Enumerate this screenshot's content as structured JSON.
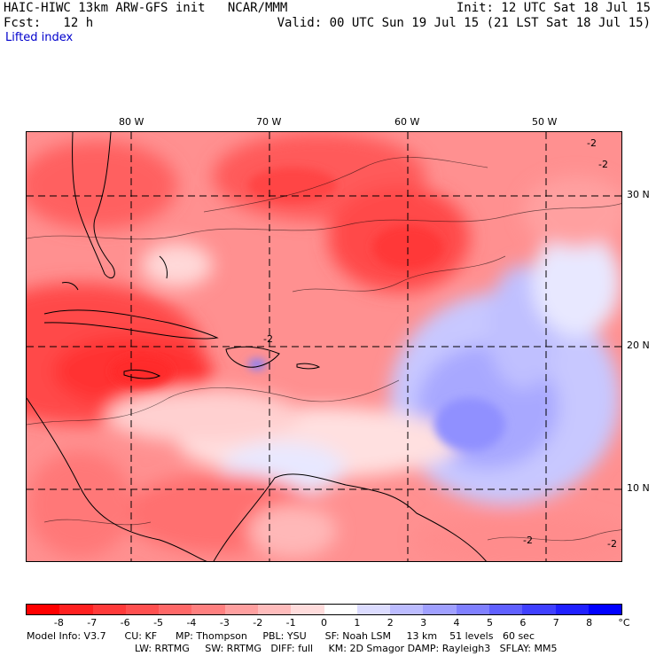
{
  "header": {
    "title_left": "HAIC-HIWC 13km ARW-GFS init   NCAR/MMM",
    "forecast_line": "Fcst:   12 h",
    "field_name": "Lifted index",
    "init_line": "Init: 12 UTC Sat 18 Jul 15",
    "valid_line": "Valid: 00 UTC Sun 19 Jul 15 (21 LST Sat 18 Jul 15)"
  },
  "map": {
    "longitude_labels": [
      "80 W",
      "70 W",
      "60 W",
      "50 W"
    ],
    "latitude_labels": [
      "30 N",
      "20 N",
      "10 N"
    ],
    "contour_labels": [
      "-2",
      "-2",
      "-2",
      "-2",
      "-2"
    ]
  },
  "colorbar": {
    "tick_labels": [
      "-8",
      "-7",
      "-6",
      "-5",
      "-4",
      "-3",
      "-2",
      "-1",
      "0",
      "1",
      "2",
      "3",
      "4",
      "5",
      "6",
      "7",
      "8"
    ],
    "unit": "°C",
    "colors": [
      "#ff0000",
      "#ff2020",
      "#ff3a3a",
      "#ff5050",
      "#ff6868",
      "#ff8080",
      "#ffa0a0",
      "#ffbcbc",
      "#ffdcdc",
      "#ffffff",
      "#dcdcff",
      "#bcbcff",
      "#a0a0ff",
      "#8080ff",
      "#6060ff",
      "#4040ff",
      "#2020ff",
      "#0000ff"
    ]
  },
  "model_info": {
    "line1": "Model Info: V3.7      CU: KF      MP: Thompson     PBL: YSU      SF: Noah LSM     13 km    51 levels   60 sec",
    "line2": "LW: RRTMG     SW: RRTMG   DIFF: full     KM: 2D Smagor DAMP: Rayleigh3   SFLAY: MM5"
  }
}
